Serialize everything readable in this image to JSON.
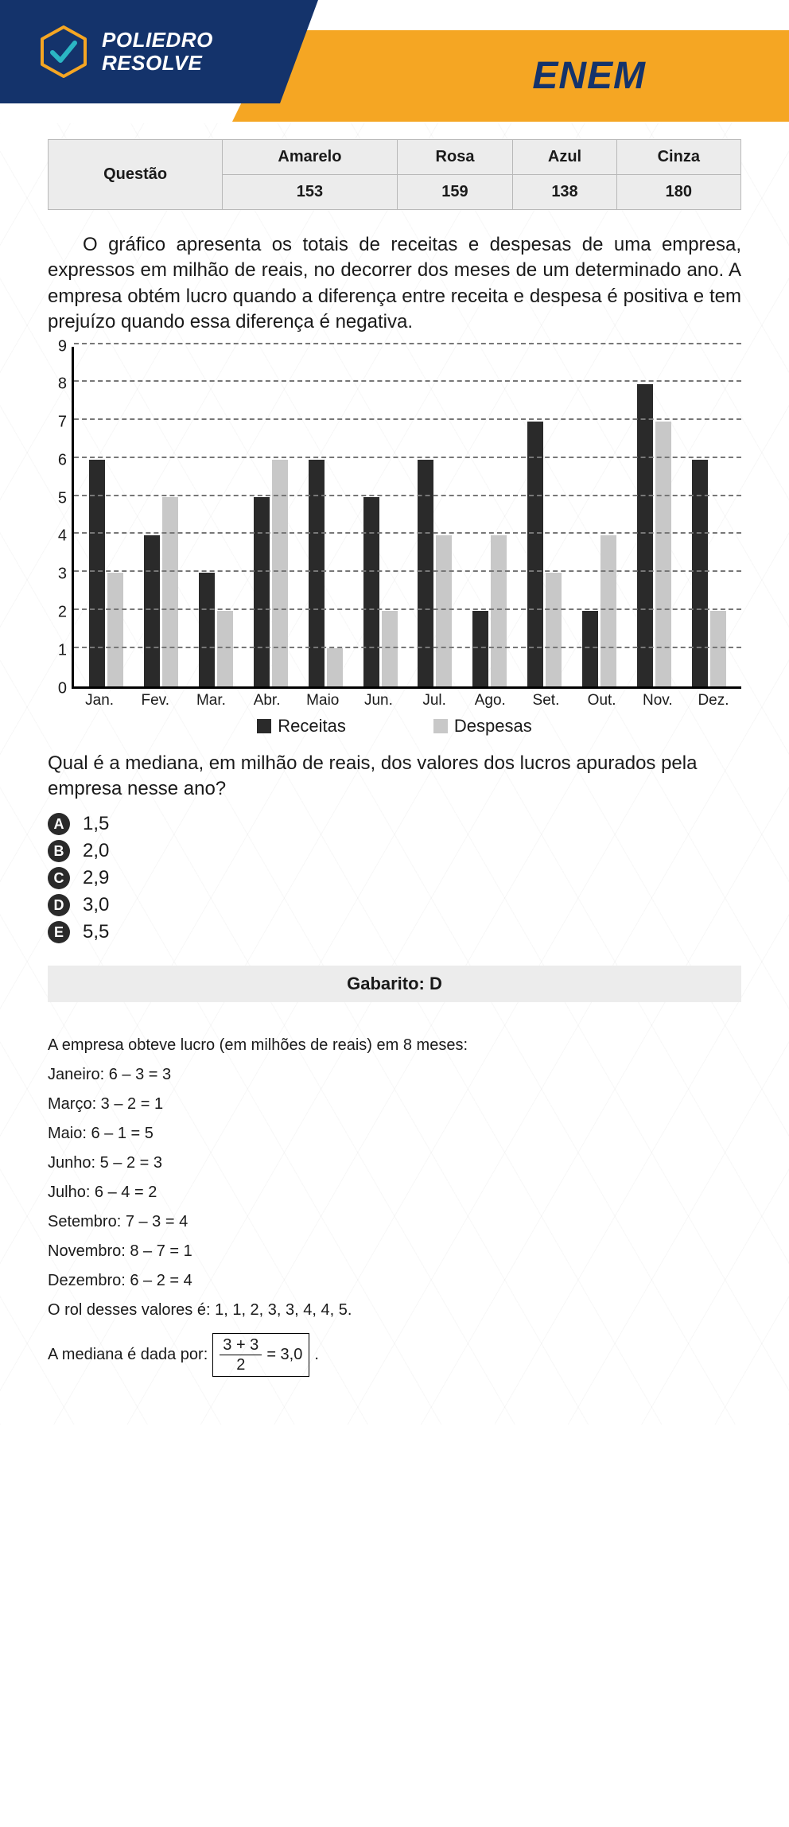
{
  "header": {
    "brand_line1": "POLIEDRO",
    "brand_line2": "RESOLVE",
    "exam": "ENEM",
    "logo_stroke": "#f5a623",
    "logo_check": "#2bb6c4",
    "blue": "#14336b",
    "orange": "#f5a623"
  },
  "table": {
    "row_label": "Questão",
    "columns": [
      "Amarelo",
      "Rosa",
      "Azul",
      "Cinza"
    ],
    "values": [
      "153",
      "159",
      "138",
      "180"
    ],
    "bg": "#ececec",
    "border": "#b8b8b8"
  },
  "question": {
    "text": "O gráfico apresenta os totais de receitas e despesas de uma empresa, expressos em milhão de reais, no decorrer dos meses de um determinado ano. A empresa obtém lucro quando a diferença entre receita e despesa é positiva e tem prejuízo quando essa diferença é negativa."
  },
  "chart": {
    "ymax": 9,
    "yticks": [
      0,
      1,
      2,
      3,
      4,
      5,
      6,
      7,
      8,
      9
    ],
    "months": [
      "Jan.",
      "Fev.",
      "Mar.",
      "Abr.",
      "Maio",
      "Jun.",
      "Jul.",
      "Ago.",
      "Set.",
      "Out.",
      "Nov.",
      "Dez."
    ],
    "receitas": [
      6,
      4,
      3,
      5,
      6,
      5,
      6,
      2,
      7,
      2,
      8,
      6
    ],
    "despesas": [
      3,
      5,
      2,
      6,
      1,
      2,
      4,
      4,
      3,
      4,
      7,
      2
    ],
    "legend_receitas": "Receitas",
    "legend_despesas": "Despesas",
    "bar_dark": "#2a2a2a",
    "bar_light": "#c8c8c8",
    "grid_color": "#777777"
  },
  "subquestion": "Qual é a mediana, em milhão de reais, dos valores dos lucros apurados pela empresa nesse ano?",
  "options": {
    "A": "1,5",
    "B": "2,0",
    "C": "2,9",
    "D": "3,0",
    "E": "5,5"
  },
  "gabarito": "Gabarito: D",
  "solution": {
    "intro": "A empresa obteve lucro (em milhões de reais) em 8 meses:",
    "lines": [
      "Janeiro: 6 – 3 = 3",
      "Março: 3 – 2 = 1",
      "Maio: 6 – 1 = 5",
      "Junho: 5 – 2 = 3",
      "Julho: 6 – 4 = 2",
      "Setembro: 7 – 3 = 4",
      "Novembro: 8 – 7 = 1",
      "Dezembro: 6 – 2 = 4"
    ],
    "rol": "O rol desses valores é: 1, 1, 2, 3, 3, 4, 4, 5.",
    "median_label": "A mediana é dada por:",
    "frac_num": "3 + 3",
    "frac_den": "2",
    "median_result": "= 3,0",
    "period": "."
  }
}
